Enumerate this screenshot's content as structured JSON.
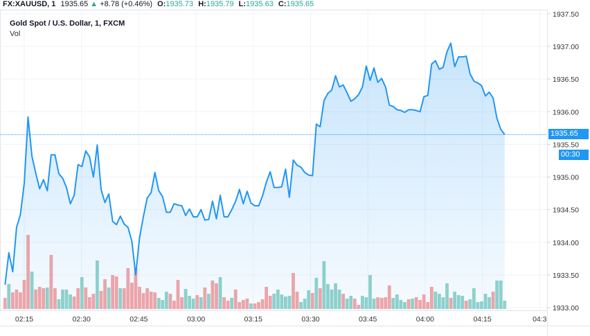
{
  "header": {
    "symbol": "FX:XAUUSD, 1",
    "last": "1935.65",
    "change": "+8.78 (+0.46%)",
    "o_label": "O:",
    "o_value": "1935.73",
    "h_label": "H:",
    "h_value": "1935.79",
    "l_label": "L:",
    "l_value": "1935.63",
    "c_label": "C:",
    "c_value": "1935.65",
    "up_icon": "triangle-up-icon"
  },
  "legend": {
    "title": "Gold Spot / U.S. Dollar, 1, FXCM",
    "vol": "Vol"
  },
  "price_tag": "1935.65",
  "countdown": "00:30",
  "hidden_tick": "19",
  "colors": {
    "line": "#2196f3",
    "up_volume": "#93d3ca",
    "down_volume": "#f5a6a6",
    "price_tag": "#2196f3"
  },
  "chart_data": {
    "type": "area",
    "x_start": "02:10",
    "x_interval_min": 1,
    "ylim": [
      1933.0,
      1937.5
    ],
    "grid": true,
    "y_ticks": [
      "1933.00",
      "1933.50",
      "1934.00",
      "1934.50",
      "1935.00",
      "1935.50",
      "1936.00",
      "1936.50",
      "1937.00",
      "1937.50"
    ],
    "x_ticks": [
      "02:15",
      "02:30",
      "02:45",
      "03:00",
      "03:15",
      "03:30",
      "03:45",
      "04:00",
      "04:15",
      "04:3"
    ],
    "series": [
      {
        "values": [
          1933.35,
          1933.84,
          1933.55,
          1934.23,
          1934.42,
          1934.9,
          1935.92,
          1935.32,
          1935.06,
          1934.82,
          1934.96,
          1934.79,
          1935.34,
          1935.34,
          1935.05,
          1934.98,
          1934.84,
          1934.59,
          1934.72,
          1935.19,
          1935.16,
          1935.4,
          1935.31,
          1935.0,
          1935.49,
          1934.81,
          1934.61,
          1934.74,
          1934.32,
          1934.27,
          1934.4,
          1934.28,
          1934.23,
          1934.02,
          1933.5,
          1934.07,
          1934.39,
          1934.68,
          1934.76,
          1935.07,
          1934.79,
          1934.7,
          1934.46,
          1934.46,
          1934.59,
          1934.57,
          1934.56,
          1934.41,
          1934.51,
          1934.39,
          1934.39,
          1934.5,
          1934.34,
          1934.35,
          1934.63,
          1934.36,
          1934.72,
          1934.39,
          1934.39,
          1934.5,
          1934.63,
          1934.81,
          1934.59,
          1934.78,
          1934.6,
          1934.56,
          1934.56,
          1934.71,
          1934.92,
          1935.08,
          1934.84,
          1934.84,
          1934.85,
          1935.12,
          1934.69,
          1935.26,
          1935.18,
          1935.15,
          1935.07,
          1935.03,
          1935.02,
          1935.81,
          1935.77,
          1936.17,
          1936.28,
          1936.33,
          1936.55,
          1936.38,
          1936.41,
          1936.29,
          1936.16,
          1936.2,
          1936.26,
          1936.38,
          1936.7,
          1936.48,
          1936.67,
          1936.45,
          1936.51,
          1936.38,
          1936.1,
          1936.08,
          1936.03,
          1936.02,
          1935.99,
          1936.03,
          1936.03,
          1936.02,
          1936.0,
          1936.23,
          1936.25,
          1936.73,
          1936.78,
          1936.65,
          1936.68,
          1936.92,
          1937.05,
          1936.69,
          1936.84,
          1936.84,
          1936.85,
          1936.58,
          1936.47,
          1936.44,
          1936.4,
          1936.24,
          1936.3,
          1936.21,
          1935.9,
          1935.73,
          1935.65
        ]
      }
    ],
    "volume": {
      "values": [
        16,
        36,
        24,
        28,
        24,
        42,
        107,
        54,
        28,
        32,
        30,
        31,
        78,
        30,
        14,
        28,
        28,
        21,
        18,
        30,
        46,
        31,
        17,
        22,
        70,
        26,
        43,
        31,
        49,
        47,
        30,
        30,
        59,
        38,
        59,
        32,
        23,
        30,
        25,
        24,
        16,
        13,
        25,
        22,
        12,
        42,
        17,
        29,
        19,
        15,
        20,
        17,
        31,
        22,
        41,
        37,
        46,
        17,
        12,
        16,
        28,
        10,
        13,
        15,
        8,
        8,
        10,
        14,
        32,
        19,
        22,
        28,
        21,
        18,
        19,
        52,
        25,
        10,
        15,
        27,
        23,
        45,
        30,
        69,
        36,
        28,
        37,
        28,
        22,
        15,
        19,
        15,
        6,
        19,
        17,
        49,
        15,
        17,
        16,
        17,
        34,
        16,
        21,
        13,
        10,
        14,
        15,
        17,
        13,
        21,
        10,
        32,
        25,
        22,
        17,
        37,
        16,
        25,
        20,
        19,
        12,
        14,
        30,
        10,
        11,
        22,
        17,
        25,
        41,
        41,
        12
      ],
      "direction": "dudddddudddudduuuudduddduddudduddddddddduuudddduuudududduddudddduddddduuuuudduuududuuuuuduudduuuudddduuuududdddduuuuduuuduuuuuuduuu"
    }
  }
}
